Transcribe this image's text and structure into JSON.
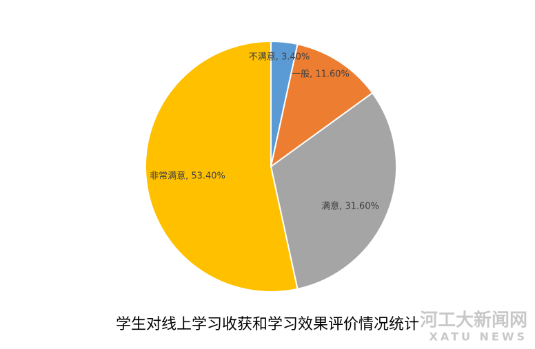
{
  "chart_data": {
    "type": "pie",
    "title": "学生对线上学习收获和学习效果评价情况统计",
    "categories": [
      "不满意",
      "一般",
      "满意",
      "非常满意"
    ],
    "values": [
      3.4,
      11.6,
      31.6,
      53.4
    ],
    "value_labels": [
      "不满意, 3.40%",
      "一般, 11.60%",
      "满意, 31.60%",
      "非常满意, 53.40%"
    ],
    "colors": [
      "#5b9bd5",
      "#ed7d31",
      "#a5a5a5",
      "#ffc000"
    ]
  },
  "watermark": {
    "name": "河工大新闻网",
    "subtitle": "XATU NEWS"
  }
}
